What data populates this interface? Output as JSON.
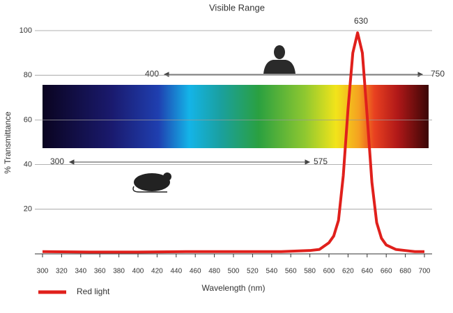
{
  "chart_data": {
    "type": "line",
    "title": "Visible Range",
    "x_label": "Wavelength (nm)",
    "y_label": "% Transmittance",
    "x": [
      300,
      350,
      400,
      450,
      500,
      550,
      580,
      590,
      600,
      605,
      610,
      615,
      620,
      625,
      630,
      635,
      640,
      645,
      650,
      655,
      660,
      670,
      680,
      690,
      700
    ],
    "series": [
      {
        "name": "Red light",
        "color": "#e0201c",
        "values": [
          1,
          0.8,
          0.8,
          1,
          1,
          1,
          1.5,
          2,
          5,
          8,
          15,
          35,
          65,
          90,
          99,
          90,
          62,
          32,
          14,
          7,
          4,
          2,
          1.5,
          1,
          1
        ]
      }
    ],
    "xlim": [
      300,
      700
    ],
    "xticks": [
      300,
      320,
      340,
      360,
      380,
      400,
      420,
      440,
      460,
      480,
      500,
      520,
      540,
      560,
      580,
      600,
      620,
      640,
      660,
      680,
      700
    ],
    "ylim": [
      0,
      100
    ],
    "yticks": [
      20,
      40,
      60,
      80,
      100
    ],
    "grid": true,
    "annotations": [
      "630",
      "400",
      "750",
      "300",
      "575"
    ],
    "legend": "bottom-left"
  }
}
